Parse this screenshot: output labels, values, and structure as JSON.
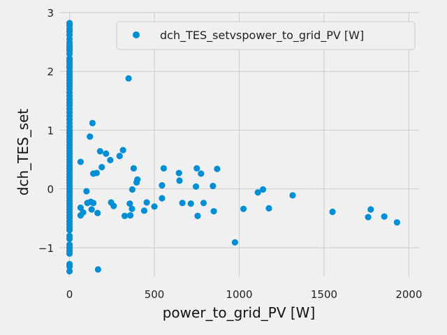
{
  "chart_data": {
    "type": "scatter",
    "title": "",
    "xlabel": "power_to_grid_PV [W]",
    "ylabel": "dch_TES_set",
    "xlim": [
      -60,
      2060
    ],
    "ylim": [
      -1.5,
      3.0
    ],
    "xticks": [
      0,
      500,
      1000,
      1500,
      2000
    ],
    "yticks": [
      -1,
      0,
      1,
      2,
      3
    ],
    "grid": true,
    "legend_position": "top-right",
    "colors": {
      "series": "#008fd5",
      "grid": "#cbcbcb",
      "background": "#f0f0f0"
    },
    "series": [
      {
        "name": "dch_TES_setvspower_to_grid_PV [W]",
        "points": [
          [
            0,
            2.82
          ],
          [
            0,
            2.78
          ],
          [
            0,
            2.72
          ],
          [
            0,
            2.68
          ],
          [
            0,
            2.62
          ],
          [
            0,
            2.55
          ],
          [
            0,
            2.49
          ],
          [
            0,
            2.44
          ],
          [
            0,
            2.42
          ],
          [
            0,
            2.38
          ],
          [
            0,
            2.35
          ],
          [
            0,
            2.3
          ],
          [
            0,
            2.22
          ],
          [
            0,
            2.18
          ],
          [
            0,
            2.15
          ],
          [
            0,
            2.1
          ],
          [
            0,
            2.06
          ],
          [
            0,
            2.0
          ],
          [
            0,
            1.95
          ],
          [
            0,
            1.9
          ],
          [
            0,
            1.85
          ],
          [
            0,
            1.8
          ],
          [
            0,
            1.75
          ],
          [
            0,
            1.7
          ],
          [
            0,
            1.64
          ],
          [
            0,
            1.58
          ],
          [
            0,
            1.52
          ],
          [
            0,
            1.47
          ],
          [
            0,
            1.42
          ],
          [
            0,
            1.36
          ],
          [
            0,
            1.3
          ],
          [
            0,
            1.24
          ],
          [
            0,
            1.18
          ],
          [
            0,
            1.12
          ],
          [
            0,
            1.06
          ],
          [
            0,
            1.0
          ],
          [
            0,
            0.95
          ],
          [
            0,
            0.9
          ],
          [
            0,
            0.85
          ],
          [
            0,
            0.8
          ],
          [
            0,
            0.75
          ],
          [
            0,
            0.7
          ],
          [
            0,
            0.65
          ],
          [
            0,
            0.6
          ],
          [
            0,
            0.55
          ],
          [
            0,
            0.5
          ],
          [
            0,
            0.45
          ],
          [
            0,
            0.4
          ],
          [
            0,
            0.35
          ],
          [
            0,
            0.3
          ],
          [
            0,
            0.25
          ],
          [
            0,
            0.2
          ],
          [
            0,
            0.15
          ],
          [
            0,
            0.1
          ],
          [
            0,
            0.05
          ],
          [
            0,
            0.0
          ],
          [
            0,
            -0.05
          ],
          [
            0,
            -0.1
          ],
          [
            0,
            -0.15
          ],
          [
            0,
            -0.2
          ],
          [
            0,
            -0.25
          ],
          [
            0,
            -0.3
          ],
          [
            0,
            -0.35
          ],
          [
            0,
            -0.4
          ],
          [
            0,
            -0.45
          ],
          [
            0,
            -0.5
          ],
          [
            0,
            -0.55
          ],
          [
            0,
            -0.6
          ],
          [
            0,
            -0.65
          ],
          [
            0,
            -0.7
          ],
          [
            0,
            -0.8
          ],
          [
            0,
            -0.85
          ],
          [
            0,
            -0.95
          ],
          [
            0,
            -1.0
          ],
          [
            0,
            -1.05
          ],
          [
            0,
            -1.1
          ],
          [
            0,
            -1.28
          ],
          [
            0,
            -1.32
          ],
          [
            0,
            -1.4
          ],
          [
            65,
            0.46
          ],
          [
            65,
            -0.32
          ],
          [
            65,
            -0.45
          ],
          [
            80,
            -0.4
          ],
          [
            100,
            -0.04
          ],
          [
            105,
            -0.24
          ],
          [
            120,
            0.89
          ],
          [
            125,
            -0.22
          ],
          [
            130,
            -0.35
          ],
          [
            135,
            1.12
          ],
          [
            140,
            0.26
          ],
          [
            140,
            -0.24
          ],
          [
            160,
            0.27
          ],
          [
            165,
            -0.41
          ],
          [
            168,
            -1.37
          ],
          [
            180,
            0.64
          ],
          [
            190,
            0.37
          ],
          [
            215,
            0.6
          ],
          [
            240,
            0.49
          ],
          [
            245,
            -0.23
          ],
          [
            260,
            -0.29
          ],
          [
            295,
            0.56
          ],
          [
            315,
            0.66
          ],
          [
            325,
            -0.46
          ],
          [
            348,
            1.88
          ],
          [
            355,
            -0.25
          ],
          [
            358,
            -0.45
          ],
          [
            368,
            -0.34
          ],
          [
            370,
            -0.01
          ],
          [
            378,
            0.35
          ],
          [
            395,
            0.11
          ],
          [
            400,
            0.16
          ],
          [
            440,
            -0.37
          ],
          [
            455,
            -0.23
          ],
          [
            500,
            -0.3
          ],
          [
            545,
            -0.16
          ],
          [
            545,
            0.06
          ],
          [
            555,
            0.35
          ],
          [
            645,
            0.27
          ],
          [
            648,
            0.14
          ],
          [
            665,
            -0.24
          ],
          [
            715,
            -0.25
          ],
          [
            745,
            0.04
          ],
          [
            750,
            0.35
          ],
          [
            755,
            -0.46
          ],
          [
            775,
            0.26
          ],
          [
            790,
            -0.24
          ],
          [
            845,
            0.05
          ],
          [
            850,
            -0.38
          ],
          [
            870,
            0.34
          ],
          [
            975,
            -0.91
          ],
          [
            1025,
            -0.34
          ],
          [
            1110,
            -0.06
          ],
          [
            1140,
            -0.01
          ],
          [
            1175,
            -0.33
          ],
          [
            1315,
            -0.11
          ],
          [
            1550,
            -0.39
          ],
          [
            1760,
            -0.48
          ],
          [
            1775,
            -0.35
          ],
          [
            1855,
            -0.47
          ],
          [
            1930,
            -0.57
          ]
        ]
      }
    ]
  }
}
